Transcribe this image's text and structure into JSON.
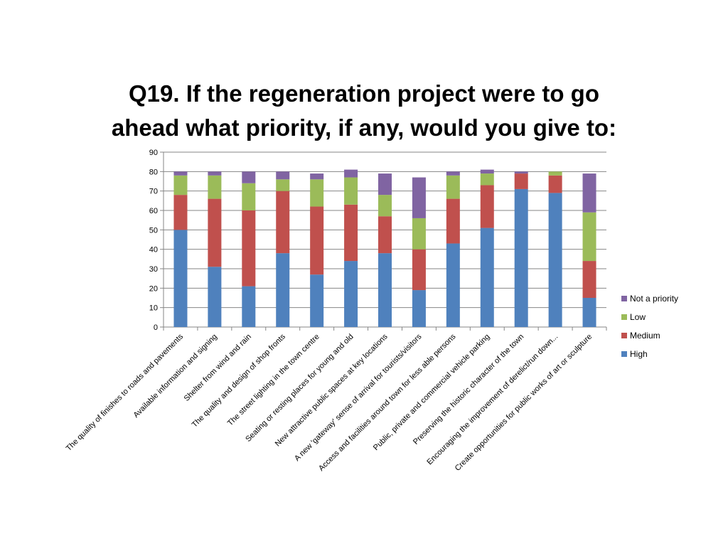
{
  "chart_data": {
    "type": "bar",
    "stacked": true,
    "title_lines": [
      "Q19. If the regeneration project were to go",
      "ahead what priority, if any, would you give to:"
    ],
    "ylim": [
      0,
      90
    ],
    "yticks": [
      0,
      10,
      20,
      30,
      40,
      50,
      60,
      70,
      80,
      90
    ],
    "grid": true,
    "legend_position": "right",
    "categories": [
      "The quality of finishes to roads and pavements",
      "Available information and signing",
      "Shelter from wind and rain",
      "The quality and design of shop fronts",
      "The street lighting in the town centre",
      "Seating or resting places for young and old",
      "New attractive public spaces at key locations",
      "A new 'gateway' sense of arrival for tourists/visitors",
      "Access and facilities around town for less able persons",
      "Public, private and commercial vehicle parking",
      "Preserving the historic character of the town",
      "Encouraging the improvement of derelict/run down...",
      "Create opportunities for public works of art or sculpture"
    ],
    "series": [
      {
        "name": "High",
        "color": "#4F81BD",
        "values": [
          50,
          31,
          21,
          38,
          27,
          34,
          38,
          19,
          43,
          51,
          71,
          69,
          15
        ]
      },
      {
        "name": "Medium",
        "color": "#C0504D",
        "values": [
          18,
          35,
          39,
          32,
          35,
          29,
          19,
          21,
          23,
          22,
          8,
          9,
          19
        ]
      },
      {
        "name": "Low",
        "color": "#9BBB59",
        "values": [
          10,
          12,
          14,
          6,
          14,
          14,
          11,
          16,
          12,
          6,
          0,
          2,
          25
        ]
      },
      {
        "name": "Not a priority",
        "color": "#8064A2",
        "values": [
          2,
          2,
          6,
          4,
          3,
          4,
          11,
          21,
          2,
          2,
          1,
          0,
          20
        ]
      }
    ]
  }
}
